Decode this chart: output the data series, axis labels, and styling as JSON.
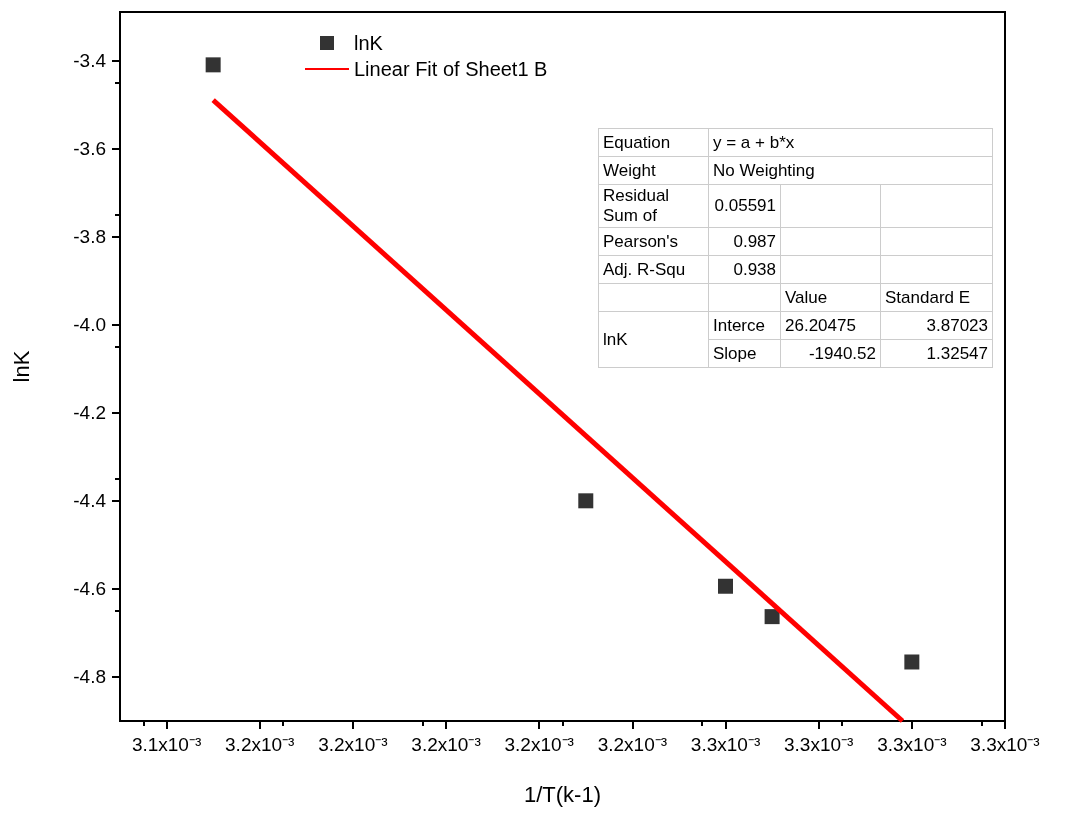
{
  "chart_data": {
    "type": "scatter",
    "xlabel": "1/T(k-1)",
    "ylabel": "lnK",
    "xlim": [
      0.00313,
      0.00332
    ],
    "ylim": [
      -4.9,
      -3.29
    ],
    "xticks": [
      {
        "value": 0.00314,
        "label": "3.1x10⁻³"
      },
      {
        "value": 0.00316,
        "label": "3.2x10⁻³"
      },
      {
        "value": 0.00318,
        "label": "3.2x10⁻³"
      },
      {
        "value": 0.0032,
        "label": "3.2x10⁻³"
      },
      {
        "value": 0.00322,
        "label": "3.2x10⁻³"
      },
      {
        "value": 0.00324,
        "label": "3.2x10⁻³"
      },
      {
        "value": 0.00326,
        "label": "3.3x10⁻³"
      },
      {
        "value": 0.00328,
        "label": "3.3x10⁻³"
      },
      {
        "value": 0.0033,
        "label": "3.3x10⁻³"
      },
      {
        "value": 0.00332,
        "label": "3.3x10⁻³"
      }
    ],
    "yticks": [
      -4.8,
      -4.6,
      -4.4,
      -4.2,
      {
        "value": -4,
        "label": "-4.0"
      },
      -3.8,
      -3.6,
      -3.4
    ],
    "grid": false,
    "legend": "top left",
    "series": [
      {
        "name": "lnK",
        "marker": "square",
        "color": "#000000",
        "x": [
          0.00315,
          0.00323,
          0.00326,
          0.00327,
          0.0033
        ],
        "values": [
          -3.41,
          -4.4,
          -4.594,
          -4.663,
          -4.766
        ]
      },
      {
        "name": "Linear Fit of Sheet1 B",
        "type": "line",
        "marker": "none",
        "line_style": "solid",
        "color": "#ff0000",
        "x": [
          0.00315,
          0.003298
        ],
        "values": [
          -3.49,
          -4.9
        ]
      }
    ],
    "annotations": [
      "Equation",
      "y = a + b*x",
      "Weight",
      "No Weighting",
      "Residual Sum of",
      "0.05591",
      "Pearson's",
      "0.987",
      "Adj. R-Squ",
      "0.938",
      "Value",
      "Standard E",
      "lnK",
      "Interce",
      "26.20475",
      "3.87023",
      "Slope",
      "-1940.52",
      "1.32547"
    ]
  }
}
